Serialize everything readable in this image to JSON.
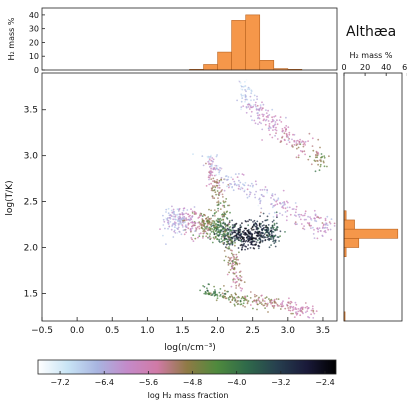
{
  "figure_title": "Althæa",
  "chart_data": [
    {
      "id": "main_phase_diagram",
      "type": "scatter",
      "xlabel": "log(n/cm⁻³)",
      "ylabel": "log(T/K)",
      "xlim": [
        -0.5,
        3.7
      ],
      "ylim": [
        1.2,
        3.9
      ],
      "xticks": [
        "−0.5",
        "0.0",
        "0.5",
        "1.0",
        "1.5",
        "2.0",
        "2.5",
        "3.0",
        "3.5"
      ],
      "yticks": [
        "1.5",
        "2.0",
        "2.5",
        "3.0",
        "3.5"
      ],
      "grid": false,
      "color_encodes": "log H₂ mass fraction",
      "clouds": [
        {
          "x": [
            2.35,
            2.45,
            2.6,
            2.8,
            3.0,
            3.3,
            3.55
          ],
          "y": [
            3.75,
            3.58,
            3.45,
            3.32,
            3.2,
            3.05,
            2.9
          ],
          "spread": 0.06,
          "logf": [
            -6.9,
            -6.4,
            -6.0,
            -5.8,
            -5.6,
            -5.2,
            -4.4
          ]
        },
        {
          "x": [
            1.3,
            1.5,
            1.8,
            2.0,
            2.2,
            2.4,
            2.6,
            2.8
          ],
          "y": [
            2.3,
            2.3,
            2.25,
            2.2,
            2.15,
            2.12,
            2.15,
            2.18
          ],
          "spread": 0.07,
          "logf": [
            -6.6,
            -6.2,
            -5.0,
            -4.2,
            -3.0,
            -2.6,
            -2.8,
            -3.6
          ]
        },
        {
          "x": [
            1.9,
            2.0,
            2.1,
            2.2,
            2.3
          ],
          "y": [
            2.9,
            2.6,
            2.3,
            1.9,
            1.6
          ],
          "spread": 0.05,
          "logf": [
            -5.8,
            -5.0,
            -4.4,
            -4.8,
            -5.4
          ]
        },
        {
          "x": [
            1.8,
            2.2,
            2.6,
            3.0,
            3.4
          ],
          "y": [
            1.55,
            1.45,
            1.42,
            1.35,
            1.28
          ],
          "spread": 0.04,
          "logf": [
            -4.2,
            -4.6,
            -5.0,
            -5.4,
            -5.6
          ]
        },
        {
          "x": [
            1.8,
            2.1,
            2.5,
            2.9,
            3.3,
            3.6
          ],
          "y": [
            3.0,
            2.75,
            2.6,
            2.45,
            2.3,
            2.2
          ],
          "spread": 0.06,
          "logf": [
            -6.8,
            -6.6,
            -6.4,
            -6.2,
            -6.0,
            -5.8
          ]
        }
      ]
    },
    {
      "id": "top_histogram",
      "type": "bar",
      "ylabel": "H₂ mass %",
      "ylim": [
        0,
        45
      ],
      "yticks": [
        "0",
        "10",
        "20",
        "30",
        "40"
      ],
      "bins_x": [
        1.6,
        1.8,
        2.0,
        2.2,
        2.4,
        2.6,
        2.8,
        3.0,
        3.2
      ],
      "values": [
        0.5,
        4,
        13,
        36,
        40,
        7,
        1,
        0.5
      ]
    },
    {
      "id": "right_histogram",
      "type": "bar",
      "orientation": "horizontal",
      "title": "H₂ mass %",
      "xlim": [
        0,
        55
      ],
      "xticks": [
        "0",
        "20",
        "40",
        "60"
      ],
      "bins_y": [
        1.2,
        1.3,
        1.4,
        1.5,
        1.6,
        1.7,
        1.8,
        1.9,
        2.0,
        2.1,
        2.2,
        2.3,
        2.4
      ],
      "values": [
        1,
        0,
        0,
        0,
        0,
        0,
        0,
        2,
        14,
        51,
        10,
        2
      ]
    },
    {
      "id": "colorbar",
      "type": "heatmap",
      "label": "log H₂ mass fraction",
      "range": [
        -7.6,
        -2.2
      ],
      "ticks": [
        "−7.2",
        "−6.4",
        "−5.6",
        "−4.8",
        "−4.0",
        "−3.2",
        "−2.4"
      ],
      "colormap_hex": [
        "#ffffff",
        "#c8e4f5",
        "#a8b4e0",
        "#c48ac9",
        "#d07aa6",
        "#8f7a45",
        "#4f8a3d",
        "#2f6a4a",
        "#27404f",
        "#1a1a3a",
        "#000000"
      ]
    }
  ],
  "colors": {
    "bar": "#f5974a",
    "bar_edge": "#b8621f",
    "axis": "#222222"
  }
}
